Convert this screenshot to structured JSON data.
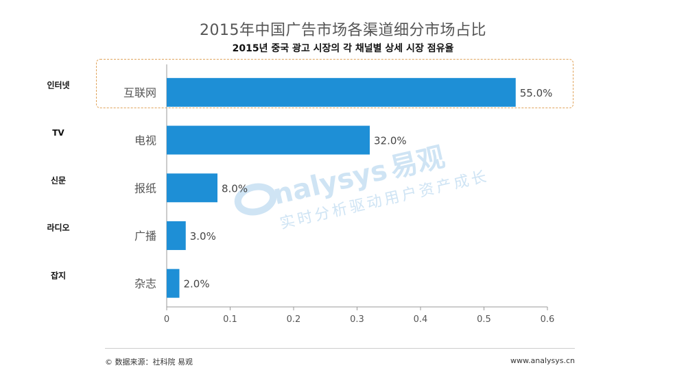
{
  "chart_data": {
    "type": "bar",
    "orientation": "horizontal",
    "title": "2015年中国广告市场各渠道细分市场占比",
    "subtitle": "2015년 중국 광고 시장의 각 채널별 상세 시장 점유율",
    "categories": [
      "互联网",
      "电视",
      "报纸",
      "广播",
      "杂志"
    ],
    "korean_labels": [
      "인터넷",
      "TV",
      "신문",
      "라디오",
      "잡지"
    ],
    "values": [
      0.55,
      0.32,
      0.08,
      0.03,
      0.02
    ],
    "data_labels": [
      "55.0%",
      "32.0%",
      "8.0%",
      "3.0%",
      "2.0%"
    ],
    "xlim": [
      0,
      0.6
    ],
    "x_ticks": [
      0,
      0.1,
      0.2,
      0.3,
      0.4,
      0.5,
      0.6
    ],
    "x_tick_labels": [
      "0",
      "0.1",
      "0.2",
      "0.3",
      "0.4",
      "0.5",
      "0.6"
    ],
    "xlabel": "",
    "ylabel": "",
    "grid": false,
    "highlighted_category": "互联网",
    "bar_color": "#1e8fd6",
    "highlight_border_color": "#e0a35a"
  },
  "watermark": {
    "brand": "nalysys",
    "cn_name": "易观",
    "slogan": "实时分析驱动用户资产成长",
    "color": "#cfe4f4"
  },
  "footer": {
    "source": "© 数据来源：社科院 易观",
    "website": "www.analysys.cn"
  }
}
